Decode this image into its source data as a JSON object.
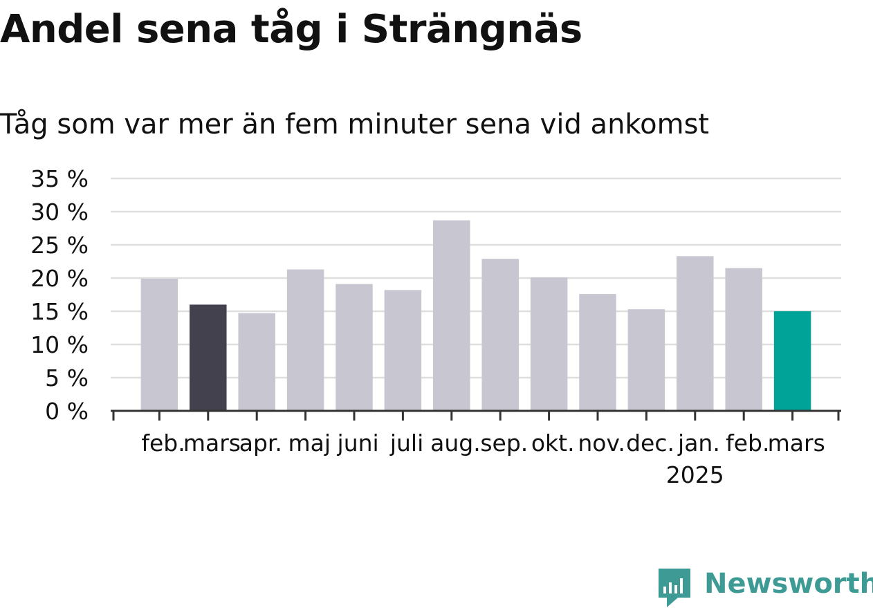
{
  "title": "Andel sena tåg i Strängnäs",
  "subtitle": "Tåg som var mer än fem minuter sena vid ankomst",
  "brand": {
    "name": "Newsworthy",
    "color": "#3d9a95"
  },
  "colors": {
    "default_bar": "#c8c6d1",
    "highlight_previous": "#44414f",
    "highlight_current": "#00a398",
    "gridline": "#dedede",
    "axis": "#333333",
    "text": "#111111"
  },
  "chart_data": {
    "type": "bar",
    "title": "Andel sena tåg i Strängnäs",
    "subtitle": "Tåg som var mer än fem minuter sena vid ankomst",
    "xlabel": "",
    "ylabel": "",
    "ylim": [
      0,
      35
    ],
    "yticks": [
      0,
      5,
      10,
      15,
      20,
      25,
      30,
      35
    ],
    "ytick_labels": [
      "0 %",
      "5 %",
      "10 %",
      "15 %",
      "20 %",
      "25 %",
      "30 %",
      "35 %"
    ],
    "grid": true,
    "categories": [
      "feb.",
      "mars",
      "apr.",
      "maj",
      "juni",
      "juli",
      "aug.",
      "sep.",
      "okt.",
      "nov.",
      "dec.",
      "jan.",
      "feb.",
      "mars"
    ],
    "year_labels": [
      {
        "index": 11,
        "label": "2025"
      }
    ],
    "values": [
      19.9,
      16.0,
      14.7,
      21.3,
      19.1,
      18.2,
      28.7,
      22.9,
      20.1,
      17.6,
      15.3,
      23.3,
      21.5,
      15.0
    ],
    "bar_colors": [
      "default",
      "highlight_previous",
      "default",
      "default",
      "default",
      "default",
      "default",
      "default",
      "default",
      "default",
      "default",
      "default",
      "default",
      "highlight_current"
    ]
  }
}
